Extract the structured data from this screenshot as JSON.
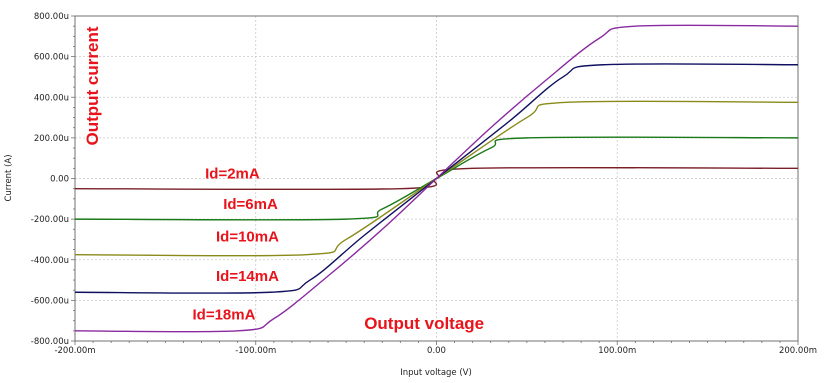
{
  "chart_data": {
    "type": "line",
    "title": "",
    "xlabel": "Input voltage (V)",
    "ylabel": "Current (A)",
    "xlim": [
      -0.2,
      0.2
    ],
    "ylim": [
      -0.0008,
      0.0008
    ],
    "grid": true,
    "x_ticks": [
      "-200.00m",
      "-100.00m",
      "0.00",
      "100.00m",
      "200.00m"
    ],
    "y_ticks": [
      "800.00u",
      "600.00u",
      "400.00u",
      "200.00u",
      "0.00",
      "-200.00u",
      "-400.00u",
      "-600.00u",
      "-800.00u"
    ],
    "series": [
      {
        "color": "#7a1f28",
        "points": [
          [
            -0.2,
            -5e-05
          ],
          [
            -0.02,
            -5e-05
          ],
          [
            0.0,
            0.0
          ],
          [
            0.02,
            5e-05
          ],
          [
            0.2,
            5e-05
          ]
        ]
      },
      {
        "color": "#1a7a1a",
        "points": [
          [
            -0.2,
            -0.0002
          ],
          [
            -0.05,
            -0.0002
          ],
          [
            -0.03,
            -0.00015
          ],
          [
            0.0,
            0.0
          ],
          [
            0.03,
            0.00015
          ],
          [
            0.05,
            0.0002
          ],
          [
            0.2,
            0.0002
          ]
        ]
      },
      {
        "color": "#8a8a1a",
        "points": [
          [
            -0.2,
            -0.000375
          ],
          [
            -0.072,
            -0.000375
          ],
          [
            -0.05,
            -0.0003
          ],
          [
            0.0,
            0.0
          ],
          [
            0.05,
            0.0003
          ],
          [
            0.072,
            0.000375
          ],
          [
            0.2,
            0.000375
          ]
        ]
      },
      {
        "color": "#101060",
        "points": [
          [
            -0.2,
            -0.00056
          ],
          [
            -0.092,
            -0.00056
          ],
          [
            -0.07,
            -0.0005
          ],
          [
            -0.04,
            -0.00028
          ],
          [
            0.0,
            0.0
          ],
          [
            0.04,
            0.00028
          ],
          [
            0.07,
            0.0005
          ],
          [
            0.092,
            0.00056
          ],
          [
            0.2,
            0.00056
          ]
        ]
      },
      {
        "color": "#8a2aa0",
        "points": [
          [
            -0.2,
            -0.00075
          ],
          [
            -0.11,
            -0.00075
          ],
          [
            -0.09,
            -0.00069
          ],
          [
            -0.06,
            -0.00048
          ],
          [
            -0.03,
            -0.00025
          ],
          [
            0.0,
            0.0
          ],
          [
            0.03,
            0.00025
          ],
          [
            0.06,
            0.00048
          ],
          [
            0.09,
            0.00069
          ],
          [
            0.11,
            0.00075
          ],
          [
            0.2,
            0.00075
          ]
        ]
      }
    ],
    "annotations": [
      {
        "text": "Id=2mA",
        "x": -0.128,
        "y": 0.0
      },
      {
        "text": "Id=6mA",
        "x": -0.118,
        "y": -0.00015
      },
      {
        "text": "Id=10mA",
        "x": -0.122,
        "y": -0.00031
      },
      {
        "text": "Id=14mA",
        "x": -0.122,
        "y": -0.000505
      },
      {
        "text": "Id=18mA",
        "x": -0.135,
        "y": -0.000695
      },
      {
        "text": "Output voltage",
        "x": -0.04,
        "y": -0.00074
      }
    ],
    "ylabel_annotation": "Output current"
  }
}
